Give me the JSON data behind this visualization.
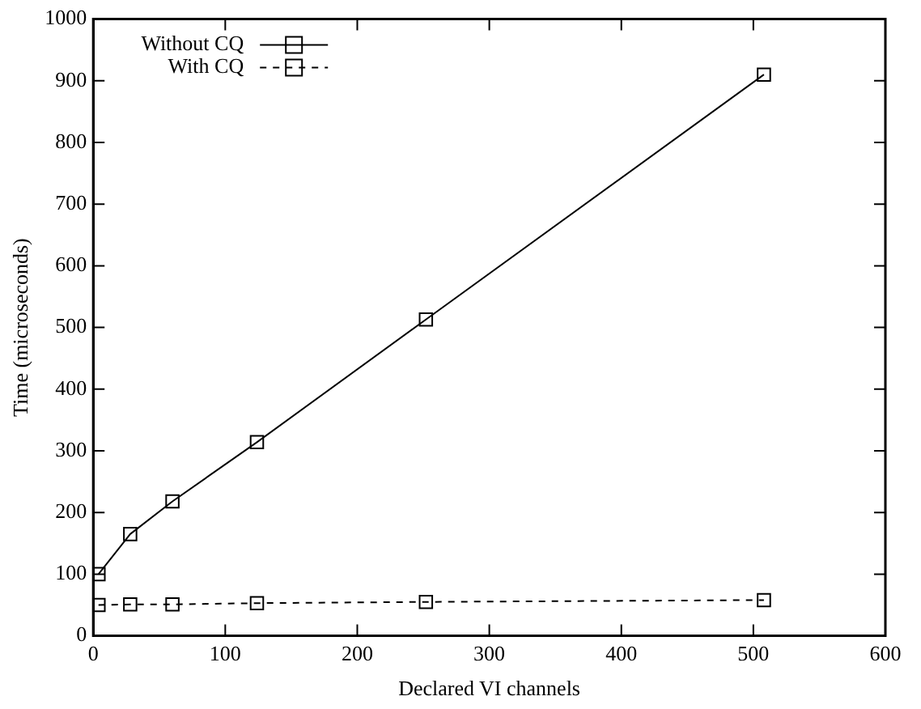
{
  "chart_data": {
    "type": "line",
    "xlabel": "Declared VI channels",
    "ylabel": "Time (microseconds)",
    "x": [
      4,
      28,
      60,
      124,
      252,
      508
    ],
    "series": [
      {
        "name": "Without CQ",
        "color": "#000000",
        "values": [
          100,
          165,
          218,
          314,
          513,
          910
        ],
        "line_style": "solid"
      },
      {
        "name": "With CQ",
        "color": "#000000",
        "values": [
          50,
          51,
          51,
          53,
          55,
          58
        ],
        "line_style": "dashed"
      }
    ],
    "xlim": [
      0,
      600
    ],
    "xticks": [
      0,
      100,
      200,
      300,
      400,
      500,
      600
    ],
    "ylim": [
      0,
      1000
    ],
    "yticks": [
      0,
      100,
      200,
      300,
      400,
      500,
      600,
      700,
      800,
      900,
      1000
    ],
    "marker": "square",
    "legend": "top left",
    "grid": false
  }
}
